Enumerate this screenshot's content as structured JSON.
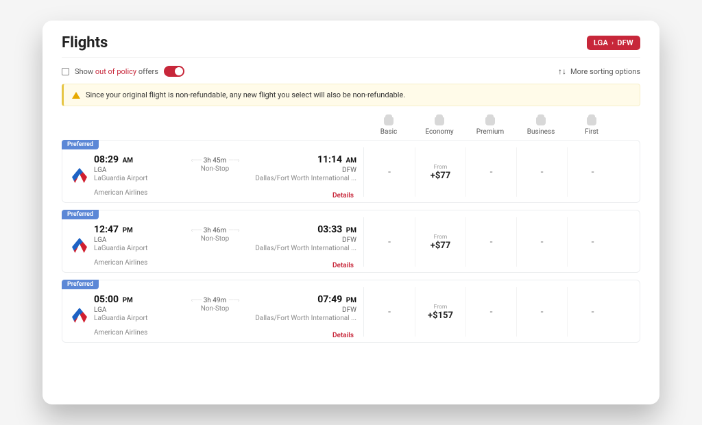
{
  "colors": {
    "accent_red": "#c7273a",
    "badge_blue": "#5b87d6",
    "alert_bg": "#fffbe9",
    "alert_border": "#e6c544",
    "text_dark": "#222222",
    "text_muted": "#888888",
    "card_border": "#eceef0",
    "window_bg": "#ffffff"
  },
  "header": {
    "title": "Flights",
    "route_from": "LGA",
    "route_to": "DFW"
  },
  "toolbar": {
    "show_label_prefix": "Show ",
    "show_label_highlight": "out of policy",
    "show_label_suffix": " offers",
    "toggle_on": true,
    "sort_label": "More sorting options"
  },
  "alert": {
    "text": "Since your original flight is non-refundable, any new flight you select will also be non-refundable."
  },
  "fare_classes": [
    "Basic",
    "Economy",
    "Premium",
    "Business",
    "First"
  ],
  "from_label": "From",
  "preferred_label": "Preferred",
  "details_label": "Details",
  "flights": [
    {
      "dep_time": "08:29",
      "dep_ampm": "AM",
      "dep_code": "LGA",
      "dep_airport": "LaGuardia Airport",
      "duration": "3h 45m",
      "stops": "Non-Stop",
      "arr_time": "11:14",
      "arr_ampm": "AM",
      "arr_code": "DFW",
      "arr_airport": "Dallas/Fort Worth International ...",
      "airline": "American Airlines",
      "prices": [
        "-",
        "+$77",
        "-",
        "-",
        "-"
      ]
    },
    {
      "dep_time": "12:47",
      "dep_ampm": "PM",
      "dep_code": "LGA",
      "dep_airport": "LaGuardia Airport",
      "duration": "3h 46m",
      "stops": "Non-Stop",
      "arr_time": "03:33",
      "arr_ampm": "PM",
      "arr_code": "DFW",
      "arr_airport": "Dallas/Fort Worth International ...",
      "airline": "American Airlines",
      "prices": [
        "-",
        "+$77",
        "-",
        "-",
        "-"
      ]
    },
    {
      "dep_time": "05:00",
      "dep_ampm": "PM",
      "dep_code": "LGA",
      "dep_airport": "LaGuardia Airport",
      "duration": "3h 49m",
      "stops": "Non-Stop",
      "arr_time": "07:49",
      "arr_ampm": "PM",
      "arr_code": "DFW",
      "arr_airport": "Dallas/Fort Worth International ...",
      "airline": "American Airlines",
      "prices": [
        "-",
        "+$157",
        "-",
        "-",
        "-"
      ]
    }
  ]
}
